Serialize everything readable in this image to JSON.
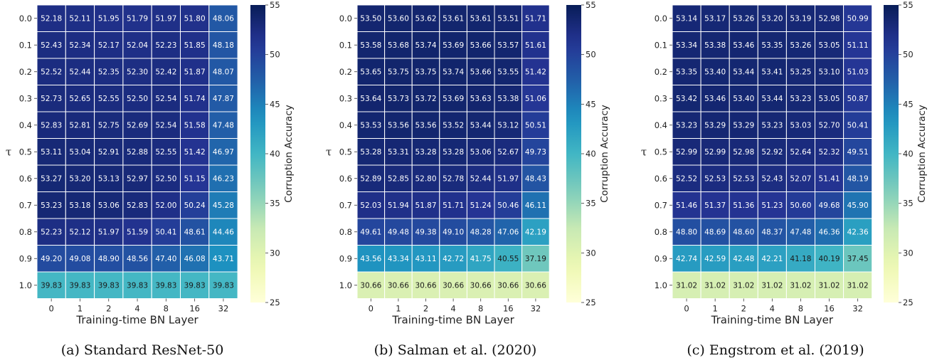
{
  "chart_data": [
    {
      "type": "heatmap",
      "caption": "(a) Standard ResNet-50",
      "xlabel": "Training-time BN Layer",
      "ylabel": "τ",
      "colorbar_label": "Corruption Accuracy",
      "colorbar_ticks": [
        25,
        30,
        35,
        40,
        45,
        50,
        55
      ],
      "vmin": 25,
      "vmax": 55,
      "x": [
        "0",
        "1",
        "2",
        "4",
        "8",
        "16",
        "32"
      ],
      "y": [
        "0.0",
        "0.1",
        "0.2",
        "0.3",
        "0.4",
        "0.5",
        "0.6",
        "0.7",
        "0.8",
        "0.9",
        "1.0"
      ],
      "values": [
        [
          "52.18",
          "52.11",
          "51.95",
          "51.79",
          "51.97",
          "51.80",
          "48.06"
        ],
        [
          "52.43",
          "52.34",
          "52.17",
          "52.04",
          "52.23",
          "51.85",
          "48.18"
        ],
        [
          "52.52",
          "52.44",
          "52.35",
          "52.30",
          "52.42",
          "51.87",
          "48.07"
        ],
        [
          "52.73",
          "52.65",
          "52.55",
          "52.50",
          "52.54",
          "51.74",
          "47.87"
        ],
        [
          "52.83",
          "52.81",
          "52.75",
          "52.69",
          "52.54",
          "51.58",
          "47.48"
        ],
        [
          "53.11",
          "53.04",
          "52.91",
          "52.88",
          "52.55",
          "51.42",
          "46.97"
        ],
        [
          "53.27",
          "53.20",
          "53.13",
          "52.97",
          "52.50",
          "51.15",
          "46.23"
        ],
        [
          "53.23",
          "53.18",
          "53.06",
          "52.83",
          "52.00",
          "50.24",
          "45.28"
        ],
        [
          "52.23",
          "52.12",
          "51.97",
          "51.59",
          "50.41",
          "48.61",
          "44.46"
        ],
        [
          "49.20",
          "49.08",
          "48.90",
          "48.56",
          "47.40",
          "46.08",
          "43.71"
        ],
        [
          "39.83",
          "39.83",
          "39.83",
          "39.83",
          "39.83",
          "39.83",
          "39.83"
        ]
      ]
    },
    {
      "type": "heatmap",
      "caption": "(b) Salman et al. (2020)",
      "xlabel": "Training-time BN Layer",
      "ylabel": "τ",
      "colorbar_label": "Corruption Accuracy",
      "colorbar_ticks": [
        25,
        30,
        35,
        40,
        45,
        50,
        55
      ],
      "vmin": 25,
      "vmax": 55,
      "x": [
        "0",
        "1",
        "2",
        "4",
        "8",
        "16",
        "32"
      ],
      "y": [
        "0.0",
        "0.1",
        "0.2",
        "0.3",
        "0.4",
        "0.5",
        "0.6",
        "0.7",
        "0.8",
        "0.9",
        "1.0"
      ],
      "values": [
        [
          "53.50",
          "53.60",
          "53.62",
          "53.61",
          "53.61",
          "53.51",
          "51.71"
        ],
        [
          "53.58",
          "53.68",
          "53.74",
          "53.69",
          "53.66",
          "53.57",
          "51.61"
        ],
        [
          "53.65",
          "53.75",
          "53.75",
          "53.74",
          "53.66",
          "53.55",
          "51.42"
        ],
        [
          "53.64",
          "53.73",
          "53.72",
          "53.69",
          "53.63",
          "53.38",
          "51.06"
        ],
        [
          "53.53",
          "53.56",
          "53.56",
          "53.52",
          "53.44",
          "53.12",
          "50.51"
        ],
        [
          "53.28",
          "53.31",
          "53.28",
          "53.28",
          "53.06",
          "52.67",
          "49.73"
        ],
        [
          "52.89",
          "52.85",
          "52.80",
          "52.78",
          "52.44",
          "51.97",
          "48.43"
        ],
        [
          "52.03",
          "51.94",
          "51.87",
          "51.71",
          "51.24",
          "50.46",
          "46.11"
        ],
        [
          "49.61",
          "49.48",
          "49.38",
          "49.10",
          "48.28",
          "47.06",
          "42.19"
        ],
        [
          "43.56",
          "43.34",
          "43.11",
          "42.72",
          "41.75",
          "40.55",
          "37.19"
        ],
        [
          "30.66",
          "30.66",
          "30.66",
          "30.66",
          "30.66",
          "30.66",
          "30.66"
        ]
      ]
    },
    {
      "type": "heatmap",
      "caption": "(c) Engstrom et al. (2019)",
      "xlabel": "Training-time BN Layer",
      "ylabel": "τ",
      "colorbar_label": "Corruption Accuracy",
      "colorbar_ticks": [
        25,
        30,
        35,
        40,
        45,
        50,
        55
      ],
      "vmin": 25,
      "vmax": 55,
      "x": [
        "0",
        "1",
        "2",
        "4",
        "8",
        "16",
        "32"
      ],
      "y": [
        "0.0",
        "0.1",
        "0.2",
        "0.3",
        "0.4",
        "0.5",
        "0.6",
        "0.7",
        "0.8",
        "0.9",
        "1.0"
      ],
      "values": [
        [
          "53.14",
          "53.17",
          "53.26",
          "53.20",
          "53.19",
          "52.98",
          "50.99"
        ],
        [
          "53.34",
          "53.38",
          "53.46",
          "53.35",
          "53.26",
          "53.05",
          "51.11"
        ],
        [
          "53.35",
          "53.40",
          "53.44",
          "53.41",
          "53.25",
          "53.10",
          "51.03"
        ],
        [
          "53.42",
          "53.46",
          "53.40",
          "53.44",
          "53.23",
          "53.05",
          "50.87"
        ],
        [
          "53.23",
          "53.29",
          "53.29",
          "53.23",
          "53.03",
          "52.70",
          "50.41"
        ],
        [
          "52.99",
          "52.99",
          "52.98",
          "52.92",
          "52.64",
          "52.32",
          "49.51"
        ],
        [
          "52.52",
          "52.53",
          "52.53",
          "52.43",
          "52.07",
          "51.41",
          "48.19"
        ],
        [
          "51.46",
          "51.37",
          "51.36",
          "51.23",
          "50.60",
          "49.68",
          "45.90"
        ],
        [
          "48.80",
          "48.69",
          "48.60",
          "48.37",
          "47.48",
          "46.36",
          "42.36"
        ],
        [
          "42.74",
          "42.59",
          "42.48",
          "42.21",
          "41.18",
          "40.19",
          "37.45"
        ],
        [
          "31.02",
          "31.02",
          "31.02",
          "31.02",
          "31.02",
          "31.02",
          "31.02"
        ]
      ]
    }
  ]
}
